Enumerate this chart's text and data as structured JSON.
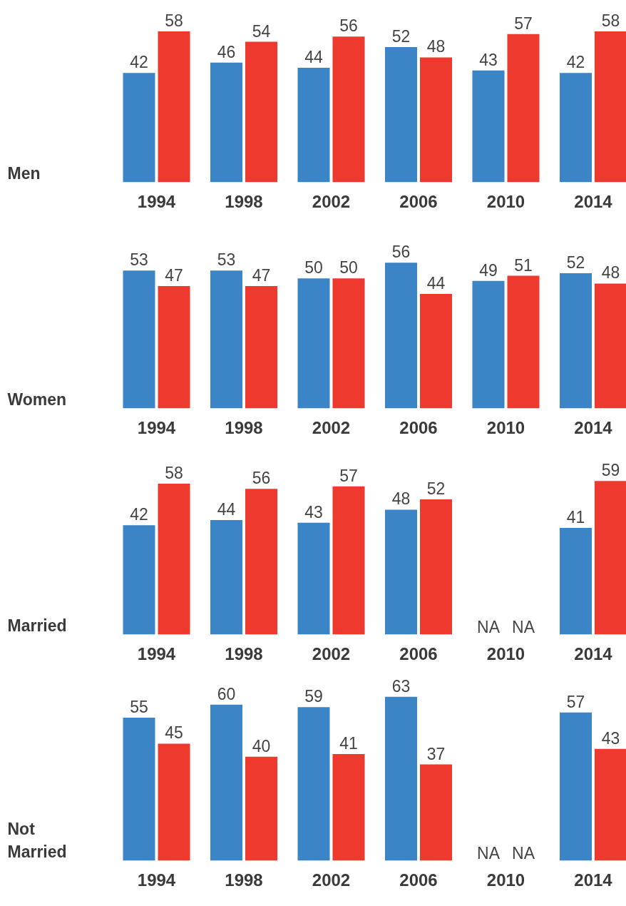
{
  "chart_data": [
    {
      "type": "bar",
      "title": "Men",
      "categories": [
        "1994",
        "1998",
        "2002",
        "2006",
        "2010",
        "2014"
      ],
      "series": [
        {
          "color": "#3b85c6",
          "values": [
            42,
            46,
            44,
            52,
            43,
            42
          ]
        },
        {
          "color": "#ee3a2e",
          "values": [
            58,
            54,
            56,
            48,
            57,
            58
          ]
        }
      ],
      "data_labels": true,
      "tick_labels": "x"
    },
    {
      "type": "bar",
      "title": "Women",
      "categories": [
        "1994",
        "1998",
        "2002",
        "2006",
        "2010",
        "2014"
      ],
      "series": [
        {
          "color": "#3b85c6",
          "values": [
            53,
            53,
            50,
            56,
            49,
            52
          ]
        },
        {
          "color": "#ee3a2e",
          "values": [
            47,
            47,
            50,
            44,
            51,
            48
          ]
        }
      ],
      "data_labels": true,
      "tick_labels": "x"
    },
    {
      "type": "bar",
      "title": "Married",
      "categories": [
        "1994",
        "1998",
        "2002",
        "2006",
        "2010",
        "2014"
      ],
      "series": [
        {
          "color": "#3b85c6",
          "values": [
            42,
            44,
            43,
            48,
            null,
            41
          ],
          "value_labels": [
            "42",
            "44",
            "43",
            "48",
            "NA",
            "41"
          ]
        },
        {
          "color": "#ee3a2e",
          "values": [
            58,
            56,
            57,
            52,
            null,
            59
          ],
          "value_labels": [
            "58",
            "56",
            "57",
            "52",
            "NA",
            "59"
          ]
        }
      ],
      "tick_labels": "x"
    },
    {
      "type": "bar",
      "title": "Not Married",
      "categories": [
        "1994",
        "1998",
        "2002",
        "2006",
        "2010",
        "2014"
      ],
      "series": [
        {
          "color": "#3b85c6",
          "values": [
            55,
            60,
            59,
            63,
            null,
            57
          ],
          "value_labels": [
            "55",
            "60",
            "59",
            "63",
            "NA",
            "57"
          ]
        },
        {
          "color": "#ee3a2e",
          "values": [
            45,
            40,
            41,
            37,
            null,
            43
          ],
          "value_labels": [
            "45",
            "40",
            "41",
            "37",
            "NA",
            "43"
          ]
        }
      ],
      "tick_labels": "x"
    }
  ]
}
